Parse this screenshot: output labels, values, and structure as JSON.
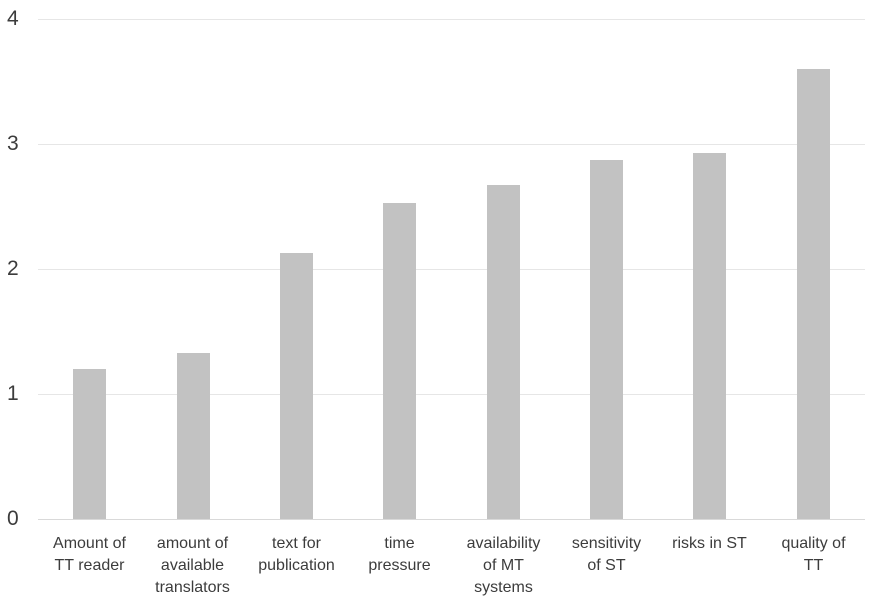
{
  "chart_data": {
    "type": "bar",
    "title": "",
    "xlabel": "",
    "ylabel": "",
    "categories": [
      "Amount of TT reader",
      "amount of available translators",
      "text for publication",
      "time pressure",
      "availability of MT systems",
      "sensitivity of ST",
      "risks in ST",
      "quality of TT"
    ],
    "category_lines": [
      [
        "Amount of",
        "TT reader"
      ],
      [
        "amount of",
        "available",
        "translators"
      ],
      [
        "text for",
        "publication"
      ],
      [
        "time",
        "pressure"
      ],
      [
        "availability",
        "of MT",
        "systems"
      ],
      [
        "sensitivity",
        "of ST"
      ],
      [
        "risks in ST"
      ],
      [
        "quality of",
        "TT"
      ]
    ],
    "values": [
      1.2,
      1.33,
      2.13,
      2.53,
      2.67,
      2.87,
      2.93,
      3.6
    ],
    "yticks": [
      0,
      1,
      2,
      3,
      4
    ],
    "ylim": [
      0,
      4
    ],
    "grid": true,
    "legend": false,
    "colors": {
      "bar_fill": "#c2c2c2",
      "gridline": "#e6e6e6",
      "baseline": "#d9d9d9",
      "text": "#3c3c3c"
    }
  }
}
